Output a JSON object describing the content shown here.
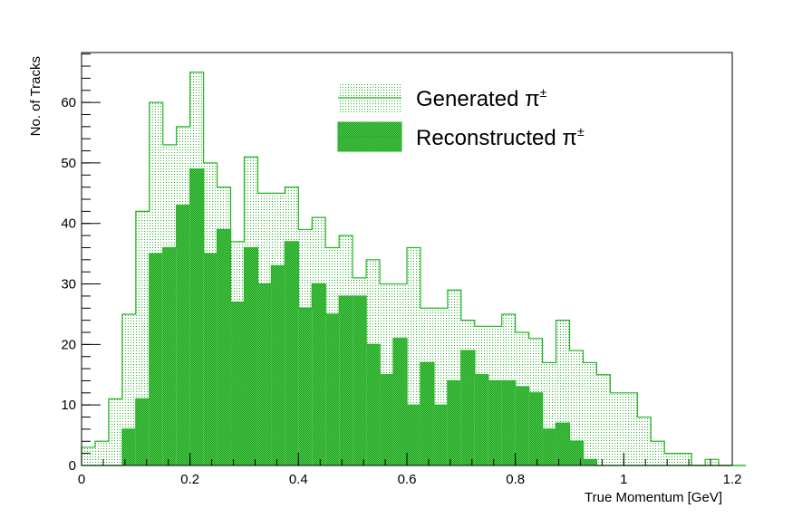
{
  "chart_data": {
    "type": "histogram",
    "xlabel": "True Momentum [GeV]",
    "ylabel": "No. of Tracks",
    "xlim": [
      0,
      1.2
    ],
    "ylim": [
      0,
      68.25
    ],
    "x_ticks": [
      "0",
      "0.2",
      "0.4",
      "0.6",
      "0.8",
      "1",
      "1.2"
    ],
    "y_ticks": [
      "0",
      "10",
      "20",
      "30",
      "40",
      "50",
      "60"
    ],
    "bin_width": 0.025,
    "bin_start": 0,
    "legend_placement": "top-center",
    "series": [
      {
        "name": "Generated π±",
        "legend_text": "Generated π",
        "legend_sup": "±",
        "color": "#22b522",
        "fill": "light-dotted",
        "values": [
          3,
          4,
          11,
          25,
          42,
          60,
          53,
          56,
          65,
          50,
          46,
          37,
          51,
          45,
          45,
          46,
          39,
          41,
          36,
          38,
          31,
          34,
          30,
          30,
          36,
          26,
          26,
          29,
          24,
          23,
          23,
          25,
          22,
          21,
          17,
          24,
          19,
          17,
          15,
          12,
          12,
          8,
          4,
          2,
          2,
          0,
          1,
          0,
          0
        ]
      },
      {
        "name": "Reconstructed π±",
        "legend_text": "Reconstructed π",
        "legend_sup": "±",
        "color": "#22b522",
        "fill": "dense-hatched",
        "values": [
          0,
          0,
          0,
          6,
          11,
          35,
          36,
          43,
          49,
          35,
          39,
          27,
          36,
          30,
          33,
          37,
          26,
          30,
          25,
          28,
          28,
          20,
          15,
          21,
          10,
          17,
          10,
          14,
          19,
          15,
          14,
          14,
          13,
          12,
          6,
          7,
          4,
          1,
          0,
          0,
          0,
          0,
          0,
          0,
          0,
          0,
          0,
          0,
          0
        ]
      }
    ]
  }
}
